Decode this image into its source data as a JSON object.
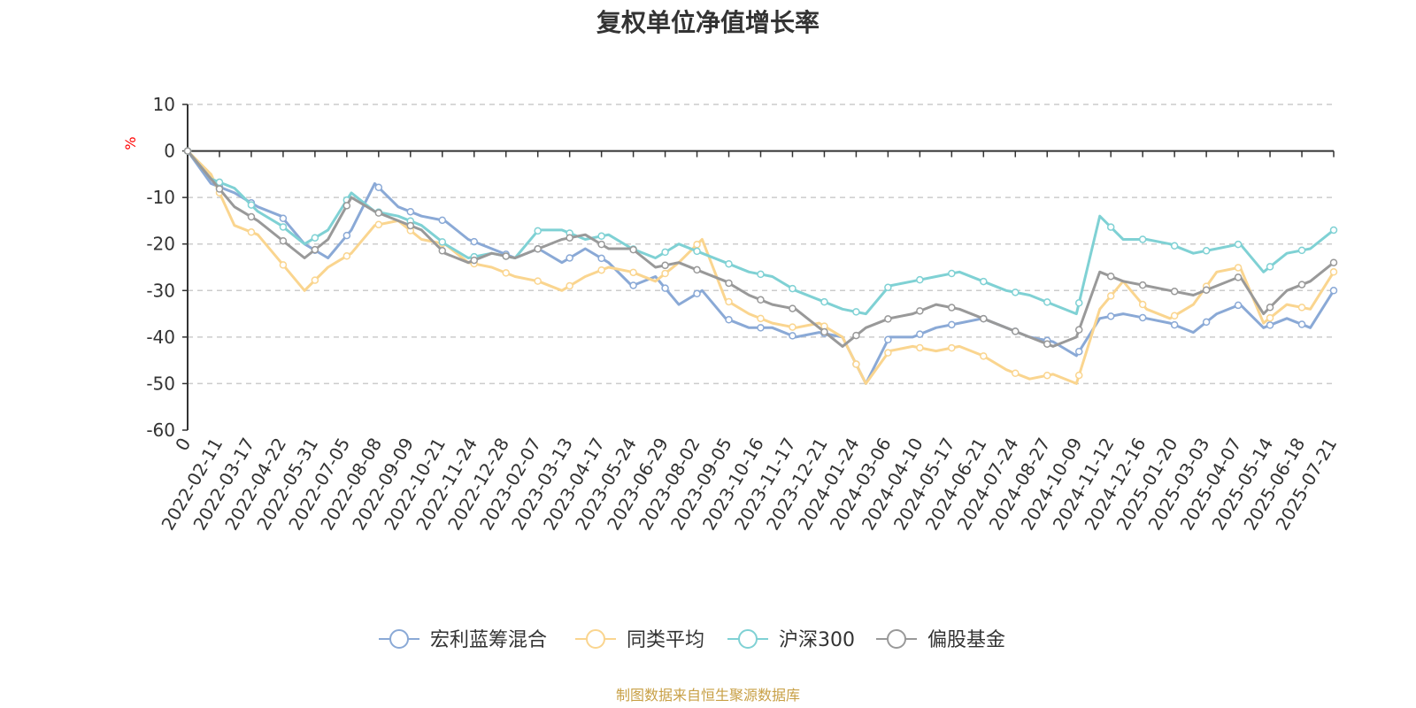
{
  "chart_data": {
    "type": "line",
    "title": "复权单位净值增长率",
    "ylabel": "%",
    "ylim": [
      -60,
      10
    ],
    "yticks": [
      10,
      0,
      -10,
      -20,
      -30,
      -40,
      -50,
      -60
    ],
    "grid": true,
    "legend_position": "bottom",
    "x_ticks": [
      "0",
      "2022-02-11",
      "2022-03-17",
      "2022-04-22",
      "2022-05-31",
      "2022-07-05",
      "2022-08-08",
      "2022-09-09",
      "2022-10-21",
      "2022-11-24",
      "2022-12-28",
      "2023-02-07",
      "2023-03-13",
      "2023-04-17",
      "2023-05-24",
      "2023-06-29",
      "2023-08-02",
      "2023-09-05",
      "2023-10-16",
      "2023-11-17",
      "2023-12-21",
      "2024-01-24",
      "2024-03-06",
      "2024-04-10",
      "2024-05-17",
      "2024-06-21",
      "2024-07-24",
      "2024-08-27",
      "2024-10-09",
      "2024-11-12",
      "2024-12-16",
      "2025-01-20",
      "2025-03-03",
      "2025-04-07",
      "2025-05-14",
      "2025-06-18",
      "2025-07-21"
    ],
    "series": [
      {
        "name": "宏利蓝筹混合",
        "color": "#8aa9d6",
        "values": [
          0,
          -7,
          -9,
          -12,
          -14,
          -20,
          -23,
          -17,
          -7,
          -12,
          -14,
          -15,
          -19,
          -21,
          -23,
          -21,
          -24,
          -21,
          -24,
          -29,
          -27,
          -33,
          -30,
          -36,
          -38,
          -38,
          -40,
          -39,
          -40,
          -50,
          -40,
          -40,
          -38,
          -37,
          -36,
          -38,
          -40,
          -41,
          -44,
          -36,
          -35,
          -36,
          -37,
          -39,
          -35,
          -33,
          -38,
          -36,
          -38,
          -30
        ],
        "markers": [
          0,
          1,
          2,
          3,
          4,
          5,
          6,
          7,
          8,
          9,
          10,
          11,
          12,
          13,
          14,
          15,
          16,
          17,
          18,
          19,
          20,
          21,
          22,
          23,
          24,
          25,
          26,
          27,
          28,
          29,
          30,
          31,
          32,
          33,
          34,
          35,
          36
        ]
      },
      {
        "name": "同类平均",
        "color": "#fad58f",
        "values": [
          0,
          -5,
          -16,
          -18,
          -24,
          -30,
          -25,
          -22,
          -16,
          -15,
          -19,
          -20,
          -24,
          -25,
          -27,
          -28,
          -30,
          -27,
          -25,
          -26,
          -28,
          -24,
          -19,
          -32,
          -35,
          -37,
          -38,
          -37,
          -40,
          -50,
          -43,
          -42,
          -43,
          -42,
          -44,
          -47,
          -49,
          -48,
          -50,
          -34,
          -28,
          -34,
          -36,
          -33,
          -26,
          -25,
          -37,
          -33,
          -34,
          -26
        ],
        "markers": [
          0,
          1,
          2,
          3,
          4,
          5,
          6,
          7,
          8,
          9,
          10,
          11,
          12,
          13,
          14,
          15,
          16,
          17,
          18,
          19,
          20,
          21,
          22,
          23,
          24,
          25,
          26,
          27,
          28,
          29,
          30,
          31,
          32,
          33,
          34,
          35,
          36
        ]
      },
      {
        "name": "沪深300",
        "color": "#7fd1d4",
        "values": [
          0,
          -6,
          -8,
          -13,
          -16,
          -20,
          -17,
          -9,
          -13,
          -14,
          -16,
          -20,
          -23,
          -22,
          -23,
          -17,
          -17,
          -19,
          -18,
          -21,
          -23,
          -20,
          -22,
          -24,
          -26,
          -27,
          -30,
          -32,
          -34,
          -35,
          -29,
          -28,
          -27,
          -26,
          -28,
          -30,
          -31,
          -33,
          -35,
          -14,
          -19,
          -19,
          -20,
          -22,
          -21,
          -20,
          -26,
          -22,
          -21,
          -17
        ],
        "markers": [
          0,
          1,
          2,
          3,
          4,
          5,
          6,
          7,
          8,
          9,
          10,
          11,
          12,
          13,
          14,
          15,
          16,
          17,
          18,
          19,
          20,
          21,
          22,
          23,
          24,
          25,
          26,
          27,
          28,
          29,
          30,
          31,
          32,
          33,
          34,
          35,
          36
        ]
      },
      {
        "name": "偏股基金",
        "color": "#999999",
        "values": [
          0,
          -6,
          -12,
          -15,
          -19,
          -23,
          -19,
          -10,
          -13,
          -15,
          -17,
          -22,
          -24,
          -22,
          -23,
          -21,
          -19,
          -18,
          -21,
          -21,
          -25,
          -24,
          -26,
          -28,
          -31,
          -33,
          -34,
          -38,
          -42,
          -38,
          -36,
          -35,
          -33,
          -34,
          -36,
          -38,
          -40,
          -42,
          -40,
          -26,
          -28,
          -29,
          -30,
          -31,
          -29,
          -27,
          -35,
          -30,
          -28,
          -24
        ],
        "markers": [
          0,
          1,
          2,
          3,
          4,
          5,
          6,
          7,
          8,
          9,
          10,
          11,
          12,
          13,
          14,
          15,
          16,
          17,
          18,
          19,
          20,
          21,
          22,
          23,
          24,
          25,
          26,
          27,
          28,
          29,
          30,
          31,
          32,
          33,
          34,
          35,
          36
        ]
      }
    ],
    "source_note": "制图数据来自恒生聚源数据库"
  }
}
